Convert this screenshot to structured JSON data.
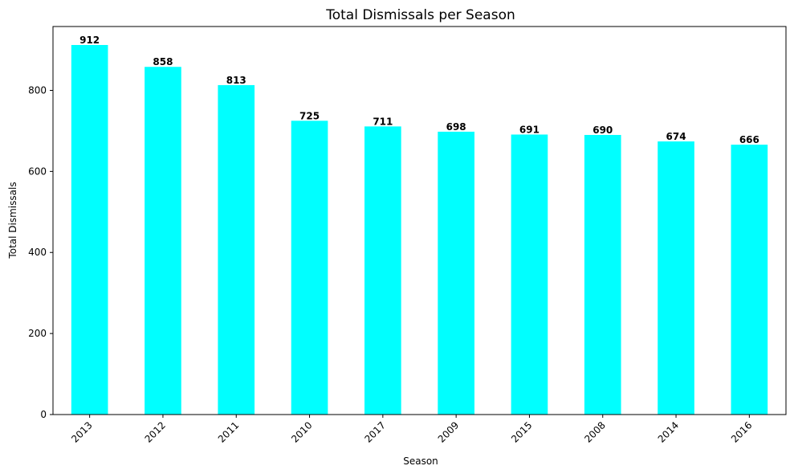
{
  "chart_data": {
    "type": "bar",
    "title": "Total Dismissals per Season",
    "xlabel": "Season",
    "ylabel": "Total Dismissals",
    "categories": [
      "2013",
      "2012",
      "2011",
      "2010",
      "2017",
      "2009",
      "2015",
      "2008",
      "2014",
      "2016"
    ],
    "values": [
      912,
      858,
      813,
      725,
      711,
      698,
      691,
      690,
      674,
      666
    ],
    "ylim": [
      0,
      957.6
    ],
    "yticks": [
      0,
      200,
      400,
      600,
      800
    ],
    "bar_color": "#00ffff",
    "grid": false,
    "legend": null
  }
}
